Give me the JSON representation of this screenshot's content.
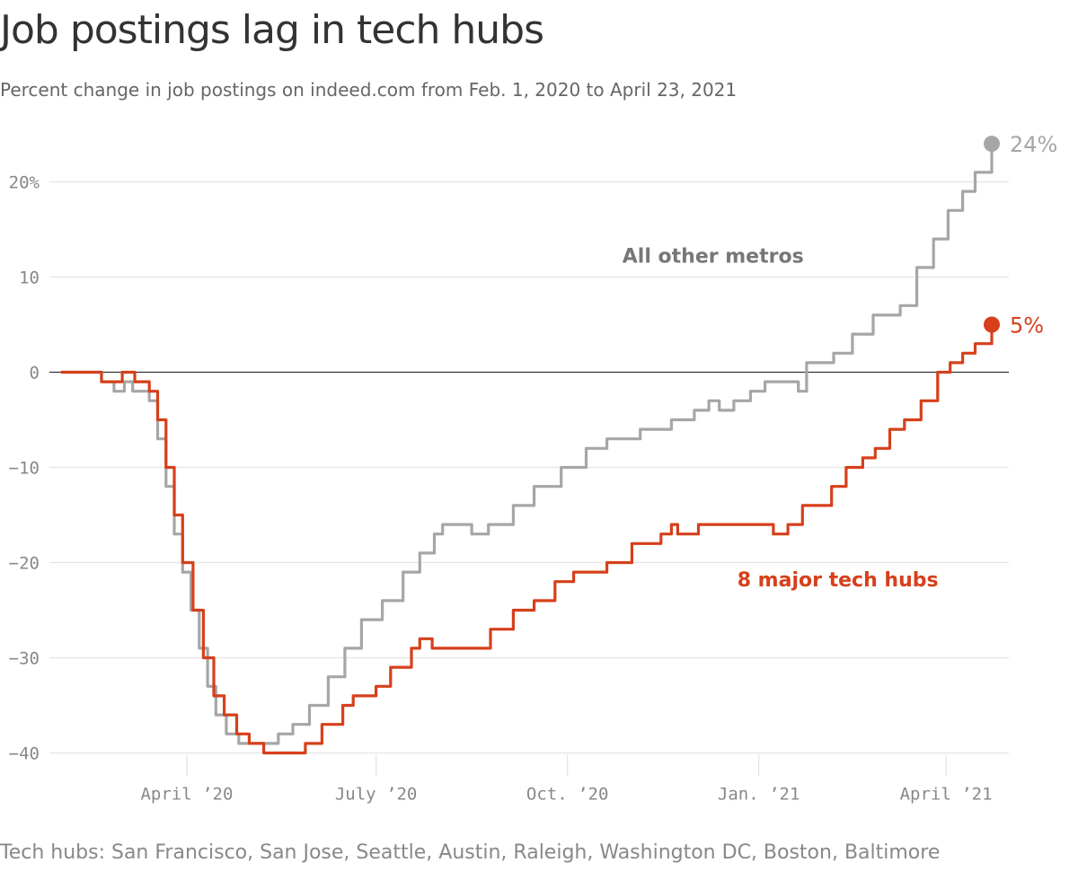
{
  "title": "Job postings lag in tech hubs",
  "subtitle": "Percent change in job postings on indeed.com from Feb. 1, 2020 to April 23, 2021",
  "footnote": "Tech hubs: San Francisco, San Jose, Seattle, Austin, Raleigh, Washington DC, Boston, Baltimore",
  "colors": {
    "tech": "#d6401b",
    "other": "#a6a6a6",
    "zero_line": "#333333",
    "grid": "#e3e3e3",
    "text": "#888888"
  },
  "chart_data": {
    "type": "line",
    "x_start": "2020-02-01",
    "x_end": "2021-04-23",
    "ylim": [
      -40,
      24
    ],
    "grid": true,
    "y_ticks": [
      {
        "value": 20,
        "label": "20%"
      },
      {
        "value": 10,
        "label": "10"
      },
      {
        "value": 0,
        "label": "0"
      },
      {
        "value": -10,
        "label": "−10"
      },
      {
        "value": -20,
        "label": "−20"
      },
      {
        "value": -30,
        "label": "−30"
      },
      {
        "value": -40,
        "label": "−40"
      }
    ],
    "x_ticks": [
      {
        "date": "2020-04-01",
        "label": "April ’20"
      },
      {
        "date": "2020-07-01",
        "label": "July ’20"
      },
      {
        "date": "2020-10-01",
        "label": "Oct. ’20"
      },
      {
        "date": "2021-01-01",
        "label": "Jan. ’21"
      },
      {
        "date": "2021-04-01",
        "label": "April ’21"
      }
    ],
    "series": [
      {
        "name": "All other metros",
        "color": "#a6a6a6",
        "end_label": "24%",
        "points": [
          [
            "2020-02-01",
            0
          ],
          [
            "2020-02-16",
            0
          ],
          [
            "2020-02-20",
            -1
          ],
          [
            "2020-02-26",
            -2
          ],
          [
            "2020-03-02",
            -1
          ],
          [
            "2020-03-06",
            -2
          ],
          [
            "2020-03-14",
            -3
          ],
          [
            "2020-03-18",
            -7
          ],
          [
            "2020-03-22",
            -12
          ],
          [
            "2020-03-26",
            -17
          ],
          [
            "2020-03-30",
            -21
          ],
          [
            "2020-04-03",
            -25
          ],
          [
            "2020-04-07",
            -29
          ],
          [
            "2020-04-11",
            -33
          ],
          [
            "2020-04-15",
            -36
          ],
          [
            "2020-04-20",
            -38
          ],
          [
            "2020-04-26",
            -39
          ],
          [
            "2020-05-15",
            -38
          ],
          [
            "2020-05-22",
            -37
          ],
          [
            "2020-05-30",
            -35
          ],
          [
            "2020-06-08",
            -32
          ],
          [
            "2020-06-16",
            -29
          ],
          [
            "2020-06-24",
            -26
          ],
          [
            "2020-07-04",
            -24
          ],
          [
            "2020-07-14",
            -21
          ],
          [
            "2020-07-22",
            -19
          ],
          [
            "2020-07-29",
            -17
          ],
          [
            "2020-08-02",
            -16
          ],
          [
            "2020-08-13",
            -16
          ],
          [
            "2020-08-16",
            -17
          ],
          [
            "2020-08-24",
            -16
          ],
          [
            "2020-09-05",
            -14
          ],
          [
            "2020-09-15",
            -12
          ],
          [
            "2020-09-28",
            -10
          ],
          [
            "2020-10-10",
            -8
          ],
          [
            "2020-10-20",
            -7
          ],
          [
            "2020-11-05",
            -6
          ],
          [
            "2020-11-20",
            -5
          ],
          [
            "2020-12-01",
            -4
          ],
          [
            "2020-12-08",
            -3
          ],
          [
            "2020-12-13",
            -4
          ],
          [
            "2020-12-20",
            -3
          ],
          [
            "2020-12-28",
            -2
          ],
          [
            "2021-01-04",
            -1
          ],
          [
            "2021-01-16",
            -1
          ],
          [
            "2021-01-20",
            -2
          ],
          [
            "2021-01-24",
            1
          ],
          [
            "2021-02-06",
            2
          ],
          [
            "2021-02-15",
            4
          ],
          [
            "2021-02-25",
            6
          ],
          [
            "2021-03-10",
            7
          ],
          [
            "2021-03-18",
            11
          ],
          [
            "2021-03-26",
            14
          ],
          [
            "2021-04-02",
            17
          ],
          [
            "2021-04-09",
            19
          ],
          [
            "2021-04-15",
            21
          ],
          [
            "2021-04-23",
            24
          ]
        ]
      },
      {
        "name": "8 major tech hubs",
        "color": "#d6401b",
        "end_label": "5%",
        "points": [
          [
            "2020-02-01",
            0
          ],
          [
            "2020-02-16",
            0
          ],
          [
            "2020-02-20",
            -1
          ],
          [
            "2020-02-27",
            -1
          ],
          [
            "2020-03-01",
            0
          ],
          [
            "2020-03-07",
            -1
          ],
          [
            "2020-03-14",
            -2
          ],
          [
            "2020-03-18",
            -5
          ],
          [
            "2020-03-22",
            -10
          ],
          [
            "2020-03-26",
            -15
          ],
          [
            "2020-03-30",
            -20
          ],
          [
            "2020-04-04",
            -25
          ],
          [
            "2020-04-09",
            -30
          ],
          [
            "2020-04-14",
            -34
          ],
          [
            "2020-04-19",
            -36
          ],
          [
            "2020-04-25",
            -38
          ],
          [
            "2020-05-01",
            -39
          ],
          [
            "2020-05-08",
            -40
          ],
          [
            "2020-05-26",
            -40
          ],
          [
            "2020-05-28",
            -39
          ],
          [
            "2020-06-05",
            -37
          ],
          [
            "2020-06-15",
            -35
          ],
          [
            "2020-06-20",
            -34
          ],
          [
            "2020-07-01",
            -33
          ],
          [
            "2020-07-08",
            -31
          ],
          [
            "2020-07-18",
            -29
          ],
          [
            "2020-07-22",
            -28
          ],
          [
            "2020-07-28",
            -29
          ],
          [
            "2020-08-20",
            -29
          ],
          [
            "2020-08-25",
            -27
          ],
          [
            "2020-09-05",
            -25
          ],
          [
            "2020-09-15",
            -24
          ],
          [
            "2020-09-25",
            -22
          ],
          [
            "2020-10-04",
            -21
          ],
          [
            "2020-10-20",
            -20
          ],
          [
            "2020-11-01",
            -18
          ],
          [
            "2020-11-15",
            -17
          ],
          [
            "2020-11-20",
            -16
          ],
          [
            "2020-11-23",
            -17
          ],
          [
            "2020-12-03",
            -16
          ],
          [
            "2021-01-03",
            -16
          ],
          [
            "2021-01-08",
            -17
          ],
          [
            "2021-01-15",
            -16
          ],
          [
            "2021-01-22",
            -14
          ],
          [
            "2021-02-05",
            -12
          ],
          [
            "2021-02-12",
            -10
          ],
          [
            "2021-02-20",
            -9
          ],
          [
            "2021-02-26",
            -8
          ],
          [
            "2021-03-05",
            -6
          ],
          [
            "2021-03-12",
            -5
          ],
          [
            "2021-03-20",
            -3
          ],
          [
            "2021-03-28",
            0
          ],
          [
            "2021-04-03",
            1
          ],
          [
            "2021-04-09",
            2
          ],
          [
            "2021-04-15",
            3
          ],
          [
            "2021-04-23",
            5
          ]
        ]
      }
    ]
  }
}
